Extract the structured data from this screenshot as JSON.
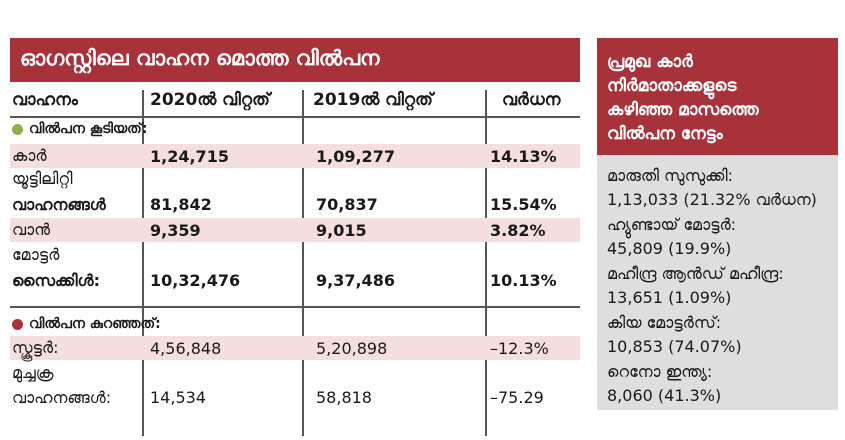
{
  "table": {
    "title": "ഓഗസ്റ്റിലെ വാഹന മൊത്ത വിൽപന",
    "headers": [
      "വാഹനം",
      "2020ൽ വിറ്റത്",
      "2019ൽ വിറ്റത്",
      "വർധന"
    ],
    "group_up": {
      "label": "വിൽപന കൂടിയത്:",
      "color": "#8db04a"
    },
    "group_down": {
      "label": "വിൽപന കുറഞ്ഞത്:",
      "color": "#a8323a"
    },
    "rows": [
      {
        "name": "കാർ",
        "y2020": "1,24,715",
        "y2019": "1,09,277",
        "change": "14.13%"
      },
      {
        "name_line1": "യൂട്ടിലിറ്റി",
        "name_line2": "വാഹനങ്ങൾ",
        "y2020": "81,842",
        "y2019": "70,837",
        "change": "15.54%"
      },
      {
        "name": "വാൻ",
        "y2020": "9,359",
        "y2019": "9,015",
        "change": "3.82%"
      },
      {
        "name_line1": "മോട്ടർ",
        "name_line2": "സൈക്കിൾ:",
        "y2020": "10,32,476",
        "y2019": "9,37,486",
        "change": "10.13%"
      },
      {
        "name": "സ്കൂട്ടർ:",
        "y2020": "4,56,848",
        "y2019": "5,20,898",
        "change": "–12.3%"
      },
      {
        "name_line1": "മുച്ചക്ര",
        "name_line2": "വാഹനങ്ങൾ:",
        "y2020": "14,534",
        "y2019": "58,818",
        "change": "–75.29"
      }
    ]
  },
  "sidebar": {
    "title_lines": [
      "പ്രമുഖ കാർ",
      "നിർമാതാക്കളുടെ",
      "കഴിഞ്ഞ മാസത്തെ",
      "വിൽപന നേട്ടം"
    ],
    "lines": [
      "മാരുതി സുസുക്കി:",
      "1,13,033 (21.32% വർധന)",
      "ഹ്യുണ്ടായ് മോട്ടർ:",
      "45,809 (19.9%)",
      "മഹീന്ദ്ര ആൻഡ് മഹീന്ദ്ര:",
      "13,651 (1.09%)",
      "കിയ മോട്ടർസ്:",
      "10,853 (74.07%)",
      "റെനോ ഇന്ത്യ:",
      "8,060 (41.3%)"
    ]
  }
}
